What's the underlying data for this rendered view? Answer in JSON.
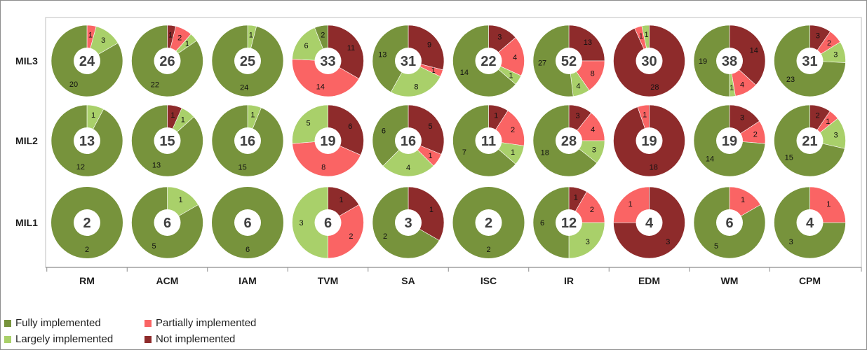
{
  "chart_data": {
    "type": "pie",
    "subtype": "donut-matrix",
    "columns": [
      "RM",
      "ACM",
      "IAM",
      "TVM",
      "SA",
      "ISC",
      "IR",
      "EDM",
      "WM",
      "CPM"
    ],
    "rows": [
      "MIL3",
      "MIL2",
      "MIL1"
    ],
    "series": [
      {
        "name": "Fully implemented",
        "color": "#77933c"
      },
      {
        "name": "Largely implemented",
        "color": "#a9d06a"
      },
      {
        "name": "Partially implemented",
        "color": "#fa6464"
      },
      {
        "name": "Not implemented",
        "color": "#8e2b2b"
      }
    ],
    "cells": {
      "MIL3": [
        {
          "total": 24,
          "counts": [
            20,
            3,
            1,
            0
          ]
        },
        {
          "total": 26,
          "counts": [
            22,
            1,
            2,
            1
          ]
        },
        {
          "total": 25,
          "counts": [
            24,
            1,
            0,
            0
          ]
        },
        {
          "total": 33,
          "counts": [
            2,
            6,
            14,
            11
          ]
        },
        {
          "total": 31,
          "counts": [
            13,
            8,
            1,
            9
          ]
        },
        {
          "total": 22,
          "counts": [
            14,
            1,
            4,
            3
          ]
        },
        {
          "total": 52,
          "counts": [
            27,
            4,
            8,
            13
          ]
        },
        {
          "total": 30,
          "counts": [
            0,
            1,
            1,
            28
          ]
        },
        {
          "total": 38,
          "counts": [
            19,
            1,
            4,
            14
          ]
        },
        {
          "total": 31,
          "counts": [
            23,
            3,
            2,
            3
          ]
        }
      ],
      "MIL2": [
        {
          "total": 13,
          "counts": [
            12,
            1,
            0,
            0
          ]
        },
        {
          "total": 15,
          "counts": [
            13,
            1,
            0,
            1
          ]
        },
        {
          "total": 16,
          "counts": [
            15,
            1,
            0,
            0
          ]
        },
        {
          "total": 19,
          "counts": [
            0,
            5,
            8,
            6
          ]
        },
        {
          "total": 16,
          "counts": [
            6,
            4,
            1,
            5
          ]
        },
        {
          "total": 11,
          "counts": [
            7,
            1,
            2,
            1
          ]
        },
        {
          "total": 28,
          "counts": [
            18,
            3,
            4,
            3
          ]
        },
        {
          "total": 19,
          "counts": [
            0,
            0,
            1,
            18
          ]
        },
        {
          "total": 19,
          "counts": [
            14,
            0,
            2,
            3
          ]
        },
        {
          "total": 21,
          "counts": [
            15,
            3,
            1,
            2
          ]
        }
      ],
      "MIL1": [
        {
          "total": 2,
          "counts": [
            2,
            0,
            0,
            0
          ]
        },
        {
          "total": 6,
          "counts": [
            5,
            1,
            0,
            0
          ]
        },
        {
          "total": 6,
          "counts": [
            6,
            0,
            0,
            0
          ]
        },
        {
          "total": 6,
          "counts": [
            0,
            3,
            2,
            1
          ]
        },
        {
          "total": 3,
          "counts": [
            2,
            0,
            0,
            1
          ]
        },
        {
          "total": 2,
          "counts": [
            2,
            0,
            0,
            0
          ]
        },
        {
          "total": 12,
          "counts": [
            6,
            3,
            2,
            1
          ]
        },
        {
          "total": 4,
          "counts": [
            0,
            0,
            1,
            3
          ]
        },
        {
          "total": 6,
          "counts": [
            5,
            0,
            1,
            0
          ]
        },
        {
          "total": 4,
          "counts": [
            3,
            0,
            1,
            0
          ]
        }
      ]
    },
    "legend": {
      "placement": "bottom-left",
      "items": [
        {
          "label": "Fully implemented",
          "color": "#77933c"
        },
        {
          "label": "Partially implemented",
          "color": "#fa6464"
        },
        {
          "label": "Largely implemented",
          "color": "#a9d06a"
        },
        {
          "label": "Not implemented",
          "color": "#8e2b2b"
        }
      ]
    }
  }
}
